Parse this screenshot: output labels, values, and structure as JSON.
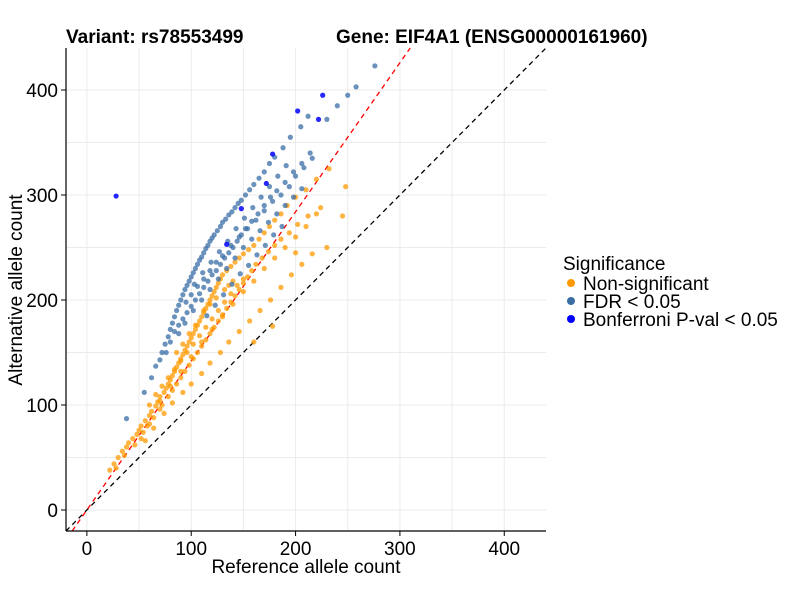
{
  "chart_data": {
    "type": "scatter",
    "title_left": "Variant: rs78553499",
    "title_right": "Gene: EIF4A1 (ENSG00000161960)",
    "xlabel": "Reference allele count",
    "ylabel": "Alternative allele count",
    "xlim": [
      -20,
      440
    ],
    "ylim": [
      -20,
      440
    ],
    "xticks": [
      0,
      100,
      200,
      300,
      400
    ],
    "yticks": [
      0,
      100,
      200,
      300,
      400
    ],
    "grid": true,
    "legend": {
      "title": "Significance",
      "position": "right",
      "entries": [
        {
          "label": "Non-significant",
          "color": "#FF9900"
        },
        {
          "label": "FDR < 0.05",
          "color": "#3A6EA5"
        },
        {
          "label": "Bonferroni P-val < 0.05",
          "color": "#0000FF"
        }
      ]
    },
    "reference_lines": [
      {
        "name": "identity-line",
        "slope": 1.0,
        "intercept": 0,
        "color": "#000000",
        "dash": "dashed"
      },
      {
        "name": "fit-line",
        "slope": 1.42,
        "intercept": 0,
        "color": "#FF0000",
        "dash": "dashed"
      }
    ],
    "series": [
      {
        "name": "Bonferroni P-val < 0.05",
        "color": "#0000FF",
        "points": [
          [
            28,
            299
          ],
          [
            134,
            253
          ],
          [
            148,
            287
          ],
          [
            172,
            311
          ],
          [
            178,
            339
          ],
          [
            202,
            380
          ],
          [
            222,
            372
          ],
          [
            226,
            395
          ]
        ]
      },
      {
        "name": "FDR < 0.05",
        "color": "#3A6EA5",
        "points": [
          [
            38,
            87
          ],
          [
            55,
            112
          ],
          [
            62,
            126
          ],
          [
            66,
            137
          ],
          [
            70,
            143
          ],
          [
            72,
            150
          ],
          [
            75,
            158
          ],
          [
            78,
            165
          ],
          [
            80,
            172
          ],
          [
            82,
            178
          ],
          [
            84,
            184
          ],
          [
            86,
            190
          ],
          [
            88,
            195
          ],
          [
            90,
            200
          ],
          [
            92,
            205
          ],
          [
            94,
            210
          ],
          [
            96,
            214
          ],
          [
            98,
            218
          ],
          [
            100,
            222
          ],
          [
            102,
            226
          ],
          [
            104,
            230
          ],
          [
            106,
            234
          ],
          [
            108,
            238
          ],
          [
            110,
            241
          ],
          [
            112,
            245
          ],
          [
            114,
            249
          ],
          [
            116,
            252
          ],
          [
            118,
            256
          ],
          [
            120,
            259
          ],
          [
            122,
            262
          ],
          [
            125,
            266
          ],
          [
            128,
            270
          ],
          [
            130,
            274
          ],
          [
            133,
            277
          ],
          [
            136,
            281
          ],
          [
            139,
            284
          ],
          [
            142,
            288
          ],
          [
            145,
            292
          ],
          [
            148,
            295
          ],
          [
            152,
            300
          ],
          [
            156,
            305
          ],
          [
            160,
            310
          ],
          [
            165,
            316
          ],
          [
            170,
            322
          ],
          [
            175,
            330
          ],
          [
            180,
            336
          ],
          [
            188,
            345
          ],
          [
            195,
            355
          ],
          [
            205,
            365
          ],
          [
            212,
            375
          ],
          [
            230,
            372
          ],
          [
            240,
            385
          ],
          [
            250,
            395
          ],
          [
            258,
            403
          ],
          [
            276,
            423
          ],
          [
            76,
            150
          ],
          [
            80,
            160
          ],
          [
            84,
            170
          ],
          [
            88,
            176
          ],
          [
            92,
            182
          ],
          [
            96,
            188
          ],
          [
            100,
            194
          ],
          [
            104,
            200
          ],
          [
            108,
            206
          ],
          [
            112,
            212
          ],
          [
            116,
            218
          ],
          [
            120,
            224
          ],
          [
            124,
            228
          ],
          [
            128,
            234
          ],
          [
            132,
            240
          ],
          [
            136,
            245
          ],
          [
            140,
            250
          ],
          [
            144,
            256
          ],
          [
            148,
            262
          ],
          [
            152,
            268
          ],
          [
            158,
            275
          ],
          [
            164,
            282
          ],
          [
            170,
            290
          ],
          [
            176,
            298
          ],
          [
            182,
            304
          ],
          [
            190,
            312
          ],
          [
            198,
            322
          ],
          [
            206,
            330
          ],
          [
            214,
            340
          ],
          [
            100,
            205
          ],
          [
            106,
            213
          ],
          [
            112,
            220
          ],
          [
            118,
            228
          ],
          [
            124,
            236
          ],
          [
            130,
            242
          ],
          [
            138,
            252
          ],
          [
            146,
            260
          ],
          [
            154,
            268
          ],
          [
            162,
            276
          ],
          [
            170,
            285
          ],
          [
            178,
            294
          ],
          [
            186,
            300
          ],
          [
            194,
            308
          ],
          [
            200,
            318
          ],
          [
            208,
            326
          ],
          [
            216,
            335
          ],
          [
            88,
            168
          ],
          [
            94,
            178
          ],
          [
            102,
            190
          ],
          [
            110,
            200
          ],
          [
            118,
            210
          ],
          [
            126,
            220
          ],
          [
            134,
            230
          ],
          [
            142,
            240
          ],
          [
            150,
            250
          ],
          [
            158,
            258
          ],
          [
            166,
            266
          ],
          [
            174,
            274
          ],
          [
            182,
            282
          ],
          [
            190,
            290
          ],
          [
            198,
            298
          ],
          [
            206,
            306
          ],
          [
            95,
            198
          ],
          [
            103,
            215
          ],
          [
            111,
            226
          ],
          [
            119,
            236
          ],
          [
            127,
            246
          ],
          [
            135,
            256
          ],
          [
            143,
            268
          ],
          [
            151,
            278
          ],
          [
            159,
            288
          ],
          [
            167,
            298
          ],
          [
            175,
            308
          ],
          [
            183,
            318
          ],
          [
            191,
            328
          ],
          [
            115,
            185
          ],
          [
            123,
            195
          ],
          [
            131,
            205
          ],
          [
            139,
            215
          ],
          [
            147,
            225
          ],
          [
            155,
            233
          ],
          [
            163,
            243
          ],
          [
            171,
            252
          ],
          [
            179,
            262
          ],
          [
            187,
            270
          ]
        ]
      },
      {
        "name": "Non-significant",
        "color": "#FF9900",
        "points": [
          [
            22,
            38
          ],
          [
            26,
            44
          ],
          [
            30,
            50
          ],
          [
            34,
            56
          ],
          [
            38,
            60
          ],
          [
            40,
            64
          ],
          [
            44,
            68
          ],
          [
            48,
            72
          ],
          [
            50,
            76
          ],
          [
            52,
            80
          ],
          [
            56,
            85
          ],
          [
            60,
            90
          ],
          [
            62,
            94
          ],
          [
            66,
            99
          ],
          [
            68,
            103
          ],
          [
            70,
            108
          ],
          [
            74,
            112
          ],
          [
            76,
            116
          ],
          [
            78,
            120
          ],
          [
            80,
            124
          ],
          [
            82,
            128
          ],
          [
            84,
            132
          ],
          [
            86,
            136
          ],
          [
            88,
            140
          ],
          [
            90,
            144
          ],
          [
            92,
            148
          ],
          [
            94,
            152
          ],
          [
            96,
            156
          ],
          [
            98,
            160
          ],
          [
            100,
            164
          ],
          [
            102,
            168
          ],
          [
            104,
            172
          ],
          [
            106,
            176
          ],
          [
            108,
            180
          ],
          [
            110,
            184
          ],
          [
            112,
            188
          ],
          [
            114,
            192
          ],
          [
            116,
            196
          ],
          [
            118,
            200
          ],
          [
            120,
            204
          ],
          [
            122,
            208
          ],
          [
            124,
            212
          ],
          [
            126,
            216
          ],
          [
            128,
            220
          ],
          [
            130,
            224
          ],
          [
            134,
            228
          ],
          [
            138,
            232
          ],
          [
            142,
            236
          ],
          [
            146,
            240
          ],
          [
            150,
            244
          ],
          [
            155,
            248
          ],
          [
            160,
            252
          ],
          [
            165,
            258
          ],
          [
            170,
            264
          ],
          [
            175,
            270
          ],
          [
            180,
            276
          ],
          [
            186,
            282
          ],
          [
            192,
            290
          ],
          [
            200,
            298
          ],
          [
            210,
            305
          ],
          [
            220,
            315
          ],
          [
            232,
            325
          ],
          [
            248,
            308
          ],
          [
            28,
            40
          ],
          [
            36,
            52
          ],
          [
            46,
            62
          ],
          [
            54,
            74
          ],
          [
            58,
            80
          ],
          [
            64,
            88
          ],
          [
            70,
            96
          ],
          [
            72,
            100
          ],
          [
            78,
            108
          ],
          [
            82,
            114
          ],
          [
            86,
            120
          ],
          [
            90,
            126
          ],
          [
            94,
            132
          ],
          [
            98,
            138
          ],
          [
            102,
            144
          ],
          [
            106,
            150
          ],
          [
            110,
            156
          ],
          [
            114,
            162
          ],
          [
            118,
            168
          ],
          [
            122,
            174
          ],
          [
            126,
            180
          ],
          [
            130,
            186
          ],
          [
            134,
            192
          ],
          [
            138,
            198
          ],
          [
            142,
            204
          ],
          [
            146,
            210
          ],
          [
            150,
            216
          ],
          [
            154,
            222
          ],
          [
            158,
            228
          ],
          [
            162,
            234
          ],
          [
            168,
            240
          ],
          [
            174,
            246
          ],
          [
            180,
            252
          ],
          [
            186,
            258
          ],
          [
            194,
            264
          ],
          [
            202,
            272
          ],
          [
            212,
            280
          ],
          [
            224,
            288
          ],
          [
            60,
            100
          ],
          [
            66,
            110
          ],
          [
            72,
            118
          ],
          [
            78,
            126
          ],
          [
            84,
            134
          ],
          [
            90,
            142
          ],
          [
            96,
            150
          ],
          [
            102,
            158
          ],
          [
            108,
            166
          ],
          [
            114,
            174
          ],
          [
            120,
            182
          ],
          [
            126,
            190
          ],
          [
            132,
            198
          ],
          [
            138,
            206
          ],
          [
            144,
            214
          ],
          [
            150,
            220
          ],
          [
            56,
            66
          ],
          [
            64,
            78
          ],
          [
            74,
            92
          ],
          [
            82,
            102
          ],
          [
            92,
            112
          ],
          [
            100,
            120
          ],
          [
            110,
            130
          ],
          [
            118,
            140
          ],
          [
            128,
            150
          ],
          [
            136,
            160
          ],
          [
            146,
            170
          ],
          [
            156,
            180
          ],
          [
            166,
            190
          ],
          [
            176,
            200
          ],
          [
            186,
            212
          ],
          [
            196,
            224
          ],
          [
            206,
            234
          ],
          [
            216,
            244
          ],
          [
            52,
            68
          ],
          [
            60,
            82
          ],
          [
            70,
            104
          ],
          [
            80,
            118
          ],
          [
            90,
            132
          ],
          [
            100,
            146
          ],
          [
            110,
            160
          ],
          [
            120,
            172
          ],
          [
            130,
            184
          ],
          [
            140,
            196
          ],
          [
            150,
            208
          ],
          [
            160,
            218
          ],
          [
            170,
            230
          ],
          [
            180,
            240
          ],
          [
            190,
            250
          ],
          [
            200,
            260
          ],
          [
            210,
            270
          ],
          [
            220,
            282
          ],
          [
            160,
            160
          ],
          [
            178,
            175
          ],
          [
            200,
            245
          ],
          [
            230,
            250
          ],
          [
            245,
            280
          ],
          [
            86,
            150
          ],
          [
            92,
            158
          ],
          [
            98,
            168
          ],
          [
            104,
            176
          ],
          [
            112,
            190
          ],
          [
            118,
            196
          ],
          [
            124,
            202
          ],
          [
            132,
            210
          ],
          [
            136,
            214
          ],
          [
            140,
            218
          ]
        ]
      }
    ]
  }
}
